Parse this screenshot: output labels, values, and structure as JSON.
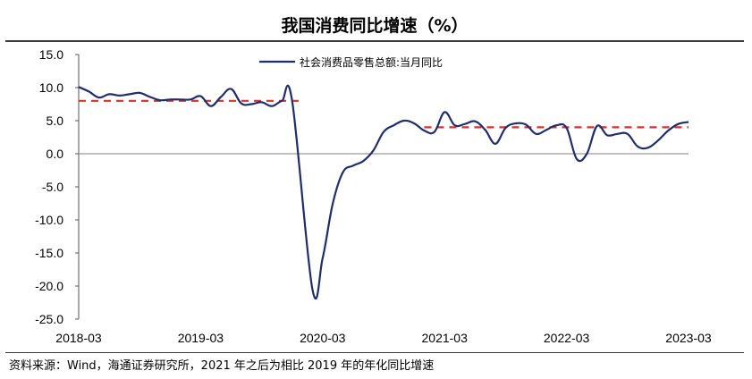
{
  "title": "我国消费同比增速（%）",
  "source": "资料来源：Wind，海通证券研究所，2021 年之后为相比 2019 年的年化同比增速",
  "colors": {
    "series": "#1f2d6b",
    "reference": "#d93030",
    "zero_line": "#9a9a9a",
    "axis": "#555555"
  },
  "chart_data": {
    "type": "line",
    "title": "我国消费同比增速（%）",
    "ylim": [
      -25,
      15
    ],
    "yticks": [
      "15.0",
      "10.0",
      "5.0",
      "0.0",
      "-5.0",
      "-10.0",
      "-15.0",
      "-20.0",
      "-25.0"
    ],
    "ytick_values": [
      15,
      10,
      5,
      0,
      -5,
      -10,
      -15,
      -20,
      -25
    ],
    "xticks": [
      "2018-03",
      "2019-03",
      "2020-03",
      "2021-03",
      "2022-03",
      "2023-03"
    ],
    "legend": "top-center",
    "series": [
      {
        "name": "社会消费品零售总额:当月同比",
        "x": [
          "2018-03",
          "2018-04",
          "2018-05",
          "2018-06",
          "2018-07",
          "2018-08",
          "2018-09",
          "2018-10",
          "2018-11",
          "2018-12",
          "2019-01",
          "2019-02",
          "2019-03",
          "2019-04",
          "2019-05",
          "2019-06",
          "2019-07",
          "2019-08",
          "2019-09",
          "2019-10",
          "2019-11",
          "2019-12",
          "2020-02",
          "2020-03",
          "2020-04",
          "2020-05",
          "2020-06",
          "2020-07",
          "2020-08",
          "2020-09",
          "2020-10",
          "2020-11",
          "2020-12",
          "2021-01",
          "2021-02",
          "2021-03",
          "2021-04",
          "2021-05",
          "2021-06",
          "2021-07",
          "2021-08",
          "2021-09",
          "2021-10",
          "2021-11",
          "2021-12",
          "2022-01",
          "2022-02",
          "2022-03",
          "2022-04",
          "2022-05",
          "2022-06",
          "2022-07",
          "2022-08",
          "2022-09",
          "2022-10",
          "2022-11",
          "2022-12",
          "2023-01",
          "2023-02",
          "2023-03"
        ],
        "values": [
          10.1,
          9.4,
          8.5,
          9.0,
          8.8,
          9.0,
          9.2,
          8.6,
          8.1,
          8.2,
          8.2,
          8.2,
          8.7,
          7.2,
          8.6,
          9.8,
          7.6,
          7.5,
          7.8,
          7.2,
          8.0,
          8.0,
          -20.5,
          -15.8,
          -7.5,
          -2.8,
          -1.8,
          -1.1,
          0.5,
          3.3,
          4.3,
          5.0,
          4.6,
          3.5,
          3.3,
          6.3,
          4.3,
          4.5,
          4.9,
          3.6,
          1.5,
          3.9,
          4.6,
          4.4,
          3.0,
          3.6,
          4.3,
          3.9,
          -0.8,
          0.0,
          4.2,
          2.8,
          3.0,
          3.0,
          1.1,
          0.9,
          2.0,
          3.5,
          4.5,
          4.8
        ]
      }
    ],
    "reference_lines": [
      {
        "from": "2018-03",
        "to": "2020-01",
        "value": 8.0
      },
      {
        "from": "2021-01",
        "to": "2023-03",
        "value": 4.0
      }
    ]
  }
}
